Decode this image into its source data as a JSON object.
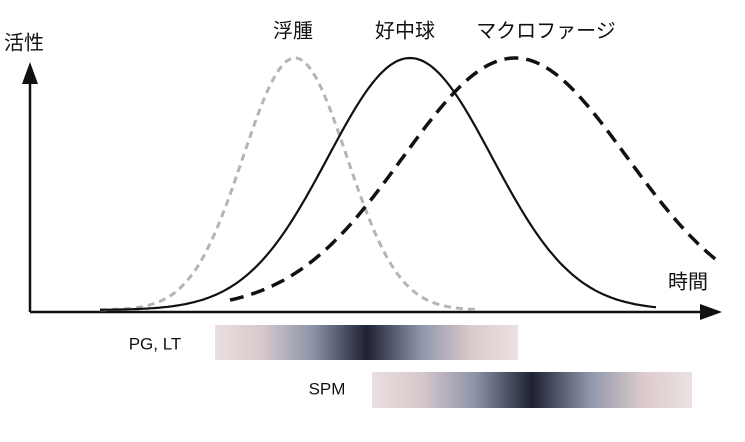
{
  "axes": {
    "y_label": "活性",
    "x_label": "時間"
  },
  "curves": [
    {
      "label": "浮腫"
    },
    {
      "label": "好中球"
    },
    {
      "label": "マクロファージ"
    }
  ],
  "bars": [
    {
      "label": "PG, LT"
    },
    {
      "label": "SPM"
    }
  ]
}
